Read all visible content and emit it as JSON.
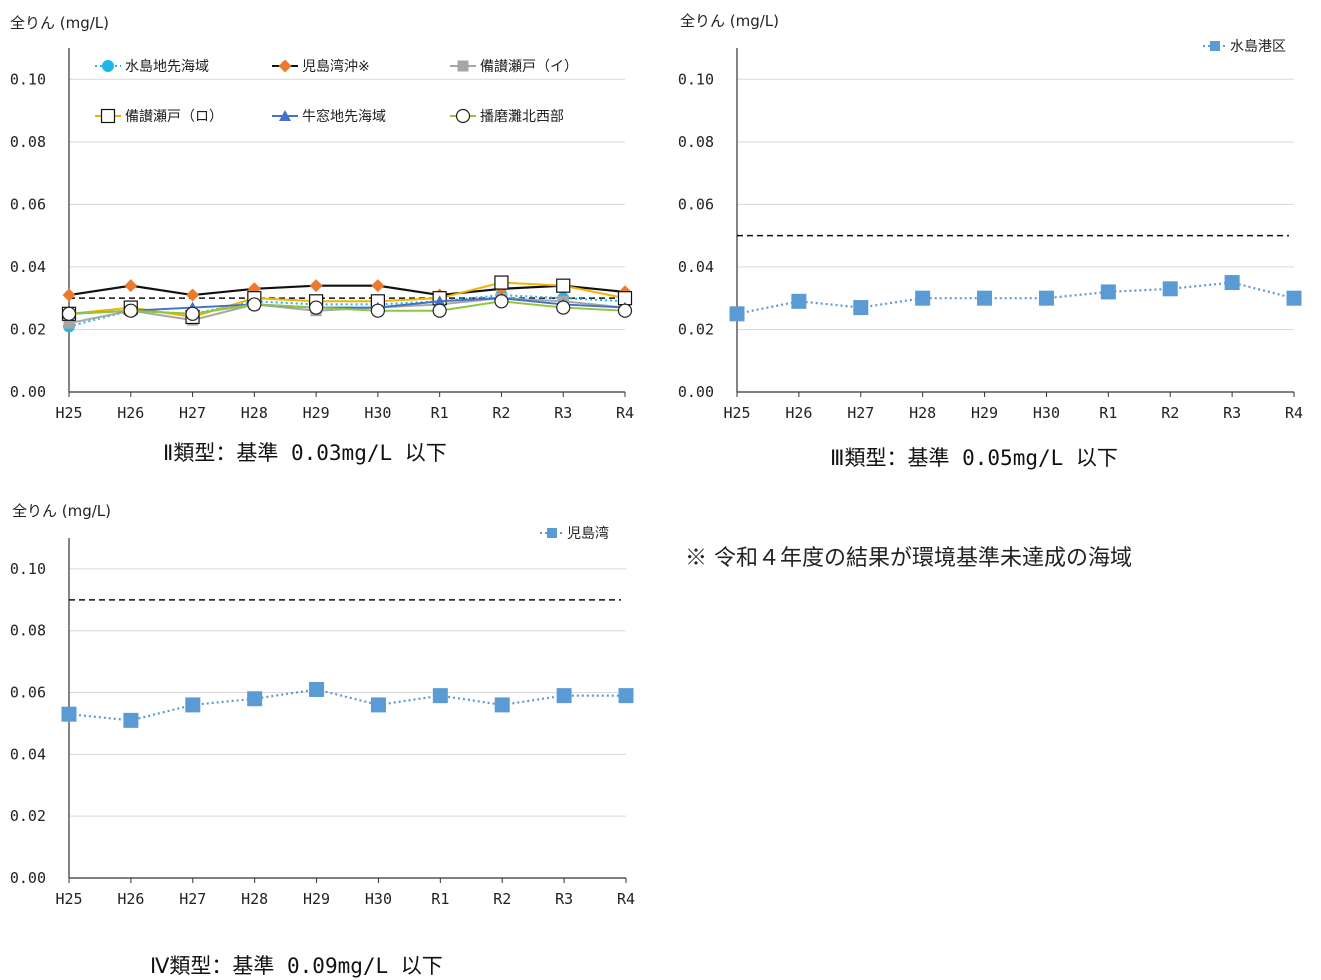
{
  "chart_data": [
    {
      "type": "line",
      "ylabel": "全りん (mg/L)",
      "categories": [
        "H25",
        "H26",
        "H27",
        "H28",
        "H29",
        "H30",
        "R1",
        "R2",
        "R3",
        "R4"
      ],
      "ylim": [
        0,
        0.11
      ],
      "yticks": [
        "0.00",
        "0.02",
        "0.04",
        "0.06",
        "0.08",
        "0.10"
      ],
      "yticks_values": [
        0,
        0.02,
        0.04,
        0.06,
        0.08,
        0.1
      ],
      "standard": 0.03,
      "grid": true,
      "legend_position": "top",
      "series": [
        {
          "name": "水島地先海域",
          "color": "#1fb6e8",
          "marker": "circle",
          "dash": "dotted",
          "values": [
            0.021,
            0.026,
            0.025,
            0.029,
            0.028,
            0.028,
            0.029,
            0.031,
            0.03,
            0.029
          ]
        },
        {
          "name": "児島湾沖※",
          "color": "#e97a2f",
          "marker": "diamond",
          "dash": "solid-black",
          "values": [
            0.031,
            0.034,
            0.031,
            0.033,
            0.034,
            0.034,
            0.031,
            0.033,
            0.034,
            0.032
          ]
        },
        {
          "name": "備讃瀬戸（イ）",
          "color": "#a6a6a6",
          "marker": "square-gray",
          "dash": "solid",
          "values": [
            0.022,
            0.026,
            0.023,
            0.028,
            0.026,
            0.027,
            0.028,
            0.03,
            0.029,
            0.027
          ]
        },
        {
          "name": "備讃瀬戸（ロ）",
          "color": "#f2b400",
          "marker": "square-open",
          "dash": "solid",
          "values": [
            0.025,
            0.027,
            0.024,
            0.03,
            0.029,
            0.029,
            0.03,
            0.035,
            0.034,
            0.03
          ]
        },
        {
          "name": "牛窓地先海域",
          "color": "#4472c4",
          "marker": "triangle",
          "dash": "solid",
          "values": [
            0.025,
            0.026,
            0.027,
            0.028,
            0.027,
            0.027,
            0.029,
            0.03,
            0.028,
            0.027
          ]
        },
        {
          "name": "播磨灘北西部",
          "color": "#8fc63f",
          "marker": "circle-open",
          "dash": "solid",
          "values": [
            0.025,
            0.026,
            0.025,
            0.028,
            0.027,
            0.026,
            0.026,
            0.029,
            0.027,
            0.026
          ]
        }
      ]
    },
    {
      "type": "line",
      "ylabel": "全りん (mg/L)",
      "categories": [
        "H25",
        "H26",
        "H27",
        "H28",
        "H29",
        "H30",
        "R1",
        "R2",
        "R3",
        "R4"
      ],
      "ylim": [
        0,
        0.11
      ],
      "yticks": [
        "0.00",
        "0.02",
        "0.04",
        "0.06",
        "0.08",
        "0.10"
      ],
      "yticks_values": [
        0,
        0.02,
        0.04,
        0.06,
        0.08,
        0.1
      ],
      "standard": 0.05,
      "grid": true,
      "legend_position": "top-right",
      "series": [
        {
          "name": "水島港区",
          "color": "#5b9bd5",
          "values": [
            0.025,
            0.029,
            0.027,
            0.03,
            0.03,
            0.03,
            0.032,
            0.033,
            0.035,
            0.03
          ]
        }
      ]
    },
    {
      "type": "line",
      "ylabel": "全りん (mg/L)",
      "categories": [
        "H25",
        "H26",
        "H27",
        "H28",
        "H29",
        "H30",
        "R1",
        "R2",
        "R3",
        "R4"
      ],
      "ylim": [
        0,
        0.11
      ],
      "yticks": [
        "0.00",
        "0.02",
        "0.04",
        "0.06",
        "0.08",
        "0.10"
      ],
      "yticks_values": [
        0,
        0.02,
        0.04,
        0.06,
        0.08,
        0.1
      ],
      "standard": 0.09,
      "grid": true,
      "legend_position": "top-right",
      "series": [
        {
          "name": "児島湾",
          "color": "#5b9bd5",
          "values": [
            0.053,
            0.051,
            0.056,
            0.058,
            0.061,
            0.056,
            0.059,
            0.056,
            0.059,
            0.059
          ]
        }
      ]
    }
  ],
  "captions": {
    "type2": "Ⅱ類型：基準 0.03mg/L 以下",
    "type3": "Ⅲ類型：基準 0.05mg/L 以下",
    "type4": "Ⅳ類型：基準 0.09mg/L 以下"
  },
  "note": "※ 令和４年度の結果が環境基準未達成の海域"
}
